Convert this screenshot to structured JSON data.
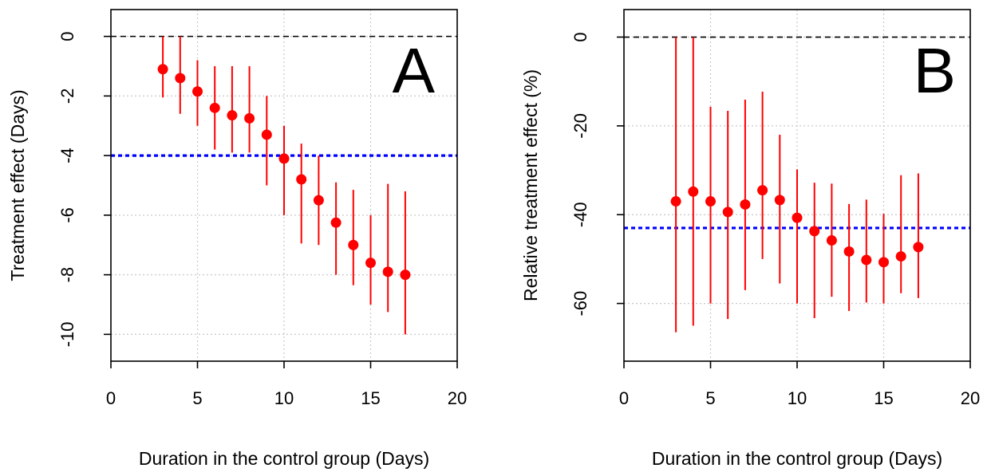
{
  "chart_data": [
    {
      "type": "scatter",
      "panel_label": "A",
      "xlabel": "Duration in the control group (Days)",
      "ylabel": "Treatment effect (Days)",
      "xlim": [
        0,
        20
      ],
      "ylim": [
        -10.9,
        0.9
      ],
      "xticks": [
        0,
        5,
        10,
        15,
        20
      ],
      "yticks": [
        0,
        -2,
        -4,
        -6,
        -8,
        -10
      ],
      "grid": true,
      "reference_lines": [
        {
          "y": 0,
          "color": "#000000",
          "style": "dashed"
        },
        {
          "y": -4,
          "color": "#0000ff",
          "style": "dotted"
        }
      ],
      "series": [
        {
          "color": "#ff0000",
          "points": [
            {
              "x": 3,
              "y": -1.1,
              "lower": -2.05,
              "upper": 0
            },
            {
              "x": 4,
              "y": -1.4,
              "lower": -2.6,
              "upper": 0
            },
            {
              "x": 5,
              "y": -1.85,
              "lower": -3.0,
              "upper": -0.8
            },
            {
              "x": 6,
              "y": -2.4,
              "lower": -3.8,
              "upper": -1.0
            },
            {
              "x": 7,
              "y": -2.65,
              "lower": -3.9,
              "upper": -1.0
            },
            {
              "x": 8,
              "y": -2.75,
              "lower": -3.9,
              "upper": -1.0
            },
            {
              "x": 9,
              "y": -3.3,
              "lower": -5.0,
              "upper": -2.0
            },
            {
              "x": 10,
              "y": -4.1,
              "lower": -6.0,
              "upper": -3.0
            },
            {
              "x": 11,
              "y": -4.8,
              "lower": -6.95,
              "upper": -3.6
            },
            {
              "x": 12,
              "y": -5.5,
              "lower": -7.0,
              "upper": -4.0
            },
            {
              "x": 13,
              "y": -6.25,
              "lower": -8.0,
              "upper": -4.9
            },
            {
              "x": 14,
              "y": -7.0,
              "lower": -8.35,
              "upper": -5.15
            },
            {
              "x": 15,
              "y": -7.6,
              "lower": -9.0,
              "upper": -6.0
            },
            {
              "x": 16,
              "y": -7.9,
              "lower": -9.25,
              "upper": -4.95
            },
            {
              "x": 17,
              "y": -8.0,
              "lower": -10.0,
              "upper": -5.2
            }
          ]
        }
      ]
    },
    {
      "type": "scatter",
      "panel_label": "B",
      "xlabel": "Duration in the control group (Days)",
      "ylabel": "Relative treatment effect (%)",
      "xlim": [
        0,
        20
      ],
      "ylim": [
        -73,
        6.2
      ],
      "xticks": [
        0,
        5,
        10,
        15,
        20
      ],
      "yticks": [
        0,
        -20,
        -40,
        -60
      ],
      "grid": true,
      "reference_lines": [
        {
          "y": 0,
          "color": "#000000",
          "style": "dashed"
        },
        {
          "y": -43.0,
          "color": "#0000ff",
          "style": "dotted"
        }
      ],
      "series": [
        {
          "color": "#ff0000",
          "points": [
            {
              "x": 3,
              "y": -37.0,
              "lower": -66.5,
              "upper": 0
            },
            {
              "x": 4,
              "y": -34.8,
              "lower": -65.0,
              "upper": 0
            },
            {
              "x": 5,
              "y": -37.0,
              "lower": -60.0,
              "upper": -15.7
            },
            {
              "x": 6,
              "y": -39.4,
              "lower": -63.5,
              "upper": -16.6
            },
            {
              "x": 7,
              "y": -37.7,
              "lower": -57.0,
              "upper": -14.1
            },
            {
              "x": 8,
              "y": -34.5,
              "lower": -50.0,
              "upper": -12.3
            },
            {
              "x": 9,
              "y": -36.7,
              "lower": -55.5,
              "upper": -22.0
            },
            {
              "x": 10,
              "y": -40.7,
              "lower": -60.0,
              "upper": -29.8
            },
            {
              "x": 11,
              "y": -43.7,
              "lower": -63.3,
              "upper": -32.8
            },
            {
              "x": 12,
              "y": -45.8,
              "lower": -58.5,
              "upper": -33.0
            },
            {
              "x": 13,
              "y": -48.3,
              "lower": -61.7,
              "upper": -37.6
            },
            {
              "x": 14,
              "y": -50.2,
              "lower": -59.8,
              "upper": -36.6
            },
            {
              "x": 15,
              "y": -50.7,
              "lower": -60.0,
              "upper": -39.8
            },
            {
              "x": 16,
              "y": -49.4,
              "lower": -57.7,
              "upper": -31.1
            },
            {
              "x": 17,
              "y": -47.3,
              "lower": -58.8,
              "upper": -30.7
            }
          ]
        }
      ]
    }
  ]
}
